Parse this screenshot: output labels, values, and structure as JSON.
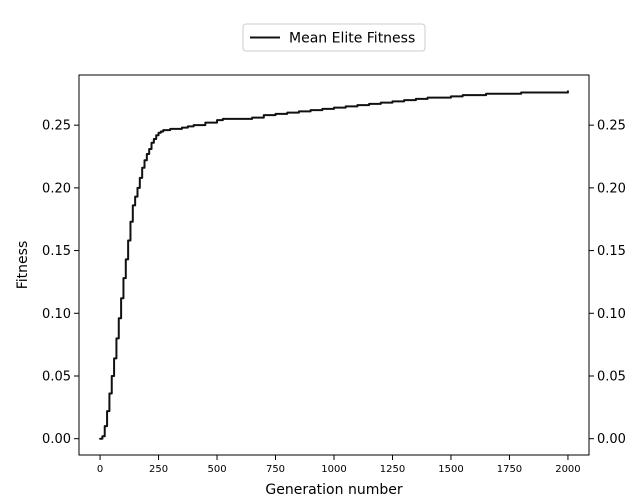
{
  "chart_data": {
    "type": "line",
    "title": "",
    "xlabel": "Generation number",
    "ylabel": "Fitness",
    "xlim": [
      -90,
      2090
    ],
    "ylim": [
      -0.013,
      0.29
    ],
    "xticks": [
      0,
      250,
      500,
      750,
      1000,
      1250,
      1500,
      1750,
      2000
    ],
    "xtick_labels": [
      "0",
      "250",
      "500",
      "750",
      "1000",
      "1250",
      "1500",
      "1750",
      "2000"
    ],
    "yticks": [
      0.0,
      0.05,
      0.1,
      0.15,
      0.2,
      0.25
    ],
    "ytick_labels": [
      "0.00",
      "0.05",
      "0.10",
      "0.15",
      "0.20",
      "0.25"
    ],
    "mirror_y_axis_right": true,
    "grid": false,
    "legend": {
      "position": "top-center",
      "entries": [
        "Mean Elite Fitness"
      ]
    },
    "series": [
      {
        "name": "Mean Elite Fitness",
        "color": "#111111",
        "x": [
          0,
          10,
          20,
          30,
          40,
          50,
          60,
          70,
          80,
          90,
          100,
          110,
          120,
          130,
          140,
          150,
          160,
          170,
          180,
          190,
          200,
          210,
          220,
          230,
          240,
          250,
          260,
          270,
          280,
          300,
          325,
          350,
          375,
          400,
          450,
          500,
          525,
          550,
          600,
          650,
          700,
          750,
          800,
          850,
          900,
          950,
          1000,
          1050,
          1100,
          1150,
          1200,
          1250,
          1300,
          1350,
          1400,
          1450,
          1500,
          1550,
          1600,
          1650,
          1700,
          1750,
          1800,
          1850,
          1900,
          1950,
          1990,
          2000
        ],
        "y": [
          0.0,
          0.002,
          0.01,
          0.022,
          0.036,
          0.05,
          0.064,
          0.08,
          0.096,
          0.112,
          0.128,
          0.143,
          0.158,
          0.173,
          0.186,
          0.193,
          0.2,
          0.208,
          0.216,
          0.222,
          0.227,
          0.231,
          0.236,
          0.239,
          0.242,
          0.244,
          0.245,
          0.246,
          0.246,
          0.247,
          0.247,
          0.248,
          0.249,
          0.25,
          0.252,
          0.254,
          0.255,
          0.255,
          0.255,
          0.256,
          0.258,
          0.259,
          0.26,
          0.261,
          0.262,
          0.263,
          0.264,
          0.265,
          0.266,
          0.267,
          0.268,
          0.269,
          0.27,
          0.271,
          0.272,
          0.272,
          0.273,
          0.274,
          0.274,
          0.275,
          0.275,
          0.275,
          0.276,
          0.276,
          0.276,
          0.276,
          0.276,
          0.277
        ]
      }
    ]
  }
}
